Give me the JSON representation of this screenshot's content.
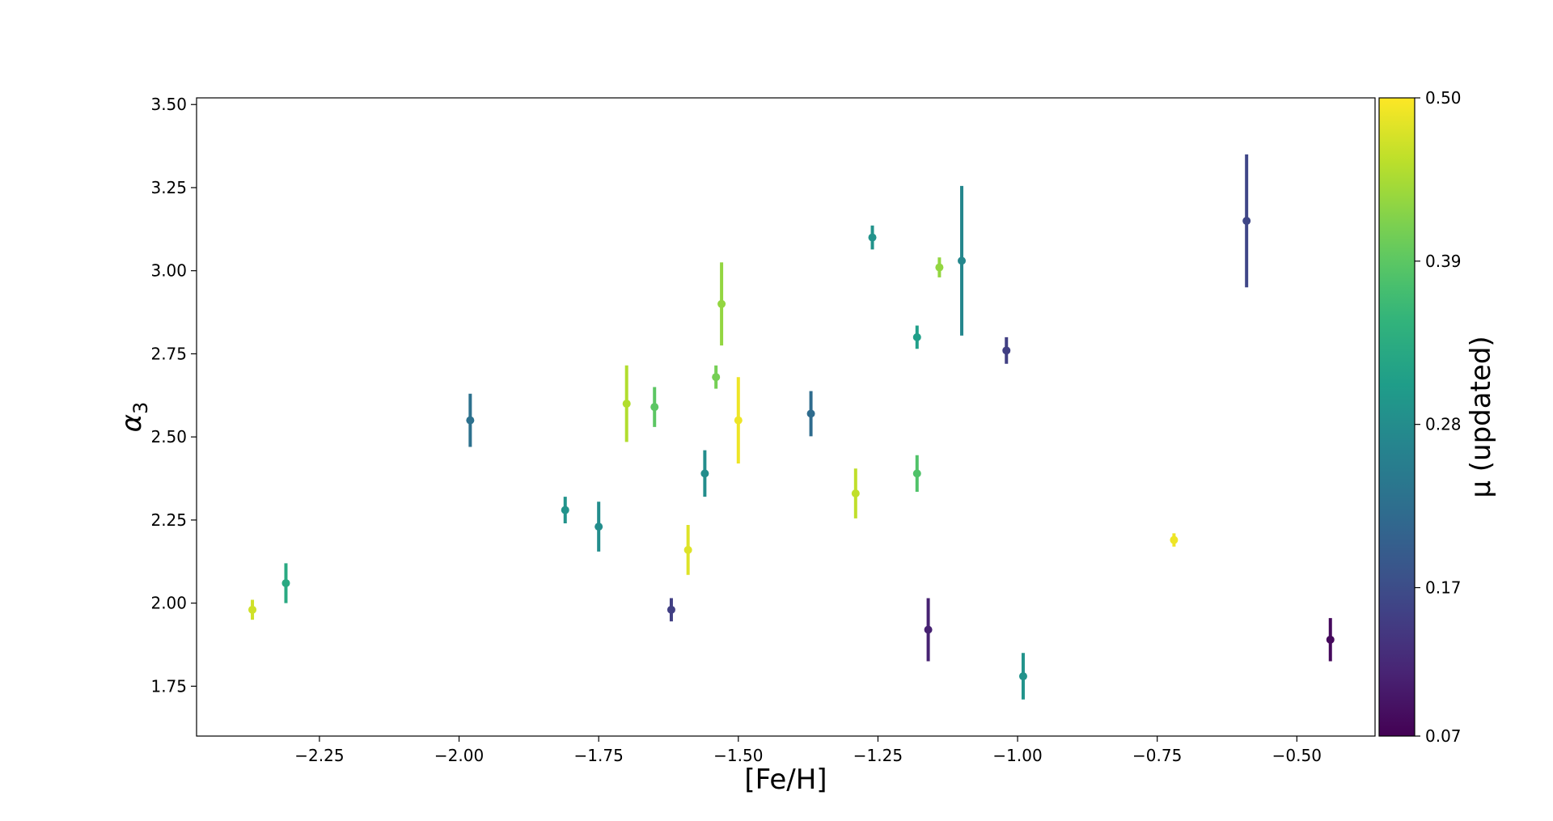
{
  "chart_data": {
    "type": "scatter",
    "title": "",
    "xlabel": "[Fe/H]",
    "ylabel": "α",
    "ylabel_subscript": "3",
    "xlim": [
      -2.47,
      -0.36
    ],
    "ylim": [
      1.6,
      3.52
    ],
    "xticks": [
      -2.25,
      -2.0,
      -1.75,
      -1.5,
      -1.25,
      -1.0,
      -0.75,
      -0.5
    ],
    "xtick_labels": [
      "−2.25",
      "−2.00",
      "−1.75",
      "−1.50",
      "−1.25",
      "−1.00",
      "−0.75",
      "−0.50"
    ],
    "yticks": [
      1.75,
      2.0,
      2.25,
      2.5,
      2.75,
      3.0,
      3.25,
      3.5
    ],
    "ytick_labels": [
      "1.75",
      "2.00",
      "2.25",
      "2.50",
      "2.75",
      "3.00",
      "3.25",
      "3.50"
    ],
    "grid": false,
    "error_bars": true,
    "colormap": "viridis",
    "colorbar": {
      "label": "μ (updated)",
      "range": [
        0.07,
        0.5
      ],
      "ticks": [
        0.07,
        0.17,
        0.28,
        0.39,
        0.5
      ],
      "tick_labels": [
        "0.07",
        "0.17",
        "0.28",
        "0.39",
        "0.50"
      ]
    },
    "points": [
      {
        "x": -2.37,
        "y": 1.98,
        "yerr": 0.03,
        "c": 0.47
      },
      {
        "x": -2.31,
        "y": 2.06,
        "yerr": 0.06,
        "c": 0.33
      },
      {
        "x": -1.98,
        "y": 2.55,
        "yerr": 0.08,
        "c": 0.23
      },
      {
        "x": -1.81,
        "y": 2.28,
        "yerr": 0.04,
        "c": 0.29
      },
      {
        "x": -1.75,
        "y": 2.23,
        "yerr": 0.075,
        "c": 0.28
      },
      {
        "x": -1.7,
        "y": 2.6,
        "yerr": 0.115,
        "c": 0.45
      },
      {
        "x": -1.65,
        "y": 2.59,
        "yerr": 0.06,
        "c": 0.39
      },
      {
        "x": -1.62,
        "y": 1.98,
        "yerr": 0.035,
        "c": 0.15
      },
      {
        "x": -1.59,
        "y": 2.16,
        "yerr": 0.075,
        "c": 0.48
      },
      {
        "x": -1.56,
        "y": 2.39,
        "yerr": 0.07,
        "c": 0.28
      },
      {
        "x": -1.54,
        "y": 2.68,
        "yerr": 0.035,
        "c": 0.41
      },
      {
        "x": -1.53,
        "y": 2.9,
        "yerr": 0.125,
        "c": 0.43
      },
      {
        "x": -1.5,
        "y": 2.55,
        "yerr": 0.13,
        "c": 0.49
      },
      {
        "x": -1.37,
        "y": 2.57,
        "yerr": 0.068,
        "c": 0.22
      },
      {
        "x": -1.29,
        "y": 2.33,
        "yerr": 0.075,
        "c": 0.46
      },
      {
        "x": -1.26,
        "y": 3.1,
        "yerr": 0.036,
        "c": 0.29
      },
      {
        "x": -1.18,
        "y": 2.39,
        "yerr": 0.055,
        "c": 0.38
      },
      {
        "x": -1.18,
        "y": 2.8,
        "yerr": 0.035,
        "c": 0.31
      },
      {
        "x": -1.16,
        "y": 1.92,
        "yerr": 0.095,
        "c": 0.11
      },
      {
        "x": -1.14,
        "y": 3.01,
        "yerr": 0.03,
        "c": 0.43
      },
      {
        "x": -1.1,
        "y": 3.03,
        "yerr": 0.225,
        "c": 0.27
      },
      {
        "x": -1.02,
        "y": 2.76,
        "yerr": 0.04,
        "c": 0.15
      },
      {
        "x": -0.99,
        "y": 1.78,
        "yerr": 0.07,
        "c": 0.29
      },
      {
        "x": -0.72,
        "y": 2.19,
        "yerr": 0.02,
        "c": 0.49
      },
      {
        "x": -0.59,
        "y": 3.15,
        "yerr": 0.2,
        "c": 0.16
      },
      {
        "x": -0.44,
        "y": 1.89,
        "yerr": 0.065,
        "c": 0.08
      }
    ]
  }
}
